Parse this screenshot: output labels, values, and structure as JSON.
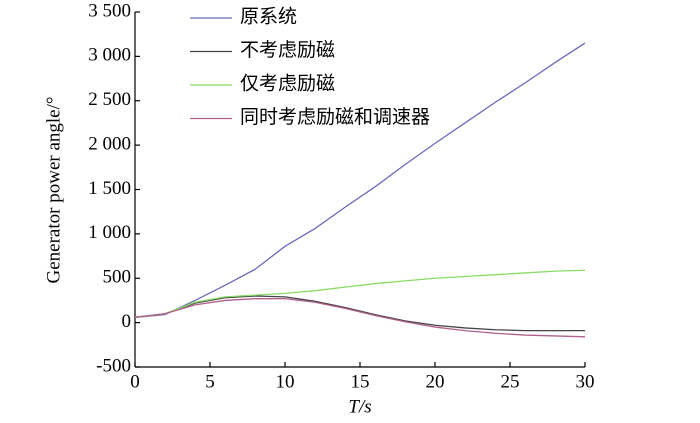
{
  "chart_data": {
    "type": "line",
    "xlabel": "T/s",
    "ylabel": "Generator power angle/°",
    "x": [
      0,
      2,
      4,
      6,
      8,
      10,
      12,
      14,
      16,
      18,
      20,
      22,
      24,
      26,
      28,
      30
    ],
    "series": [
      {
        "name": "原系统",
        "color": "#6a6ab8",
        "values": [
          60,
          90,
          250,
          420,
          600,
          860,
          1060,
          1300,
          1530,
          1780,
          2020,
          2250,
          2480,
          2700,
          2930,
          3150
        ]
      },
      {
        "name": "不考虑励磁",
        "color": "#444444",
        "values": [
          60,
          100,
          220,
          280,
          300,
          290,
          240,
          170,
          90,
          20,
          -30,
          -60,
          -80,
          -90,
          -90,
          -90
        ]
      },
      {
        "name": "仅考虑励磁",
        "color": "#88dd66",
        "values": [
          60,
          100,
          230,
          290,
          310,
          330,
          360,
          400,
          440,
          470,
          500,
          520,
          540,
          560,
          580,
          590
        ]
      },
      {
        "name": "同时考虑励磁和调速器",
        "color": "#b0608a",
        "values": [
          60,
          100,
          200,
          250,
          270,
          270,
          230,
          160,
          80,
          10,
          -50,
          -90,
          -120,
          -140,
          -150,
          -160
        ]
      }
    ],
    "xlim": [
      0,
      30
    ],
    "xticks": [
      0,
      5,
      10,
      15,
      20,
      25,
      30
    ],
    "ylim": [
      -500,
      3500
    ],
    "yticks": [
      -500,
      0,
      500,
      {
        "value": 1000,
        "label": "1 000"
      },
      {
        "value": 1500,
        "label": "1 500"
      },
      {
        "value": 2000,
        "label": "2 000"
      },
      {
        "value": 2500,
        "label": "2 500"
      },
      {
        "value": 3000,
        "label": "3 000"
      },
      {
        "value": 3500,
        "label": "3 500"
      }
    ],
    "legend": "upper left"
  }
}
